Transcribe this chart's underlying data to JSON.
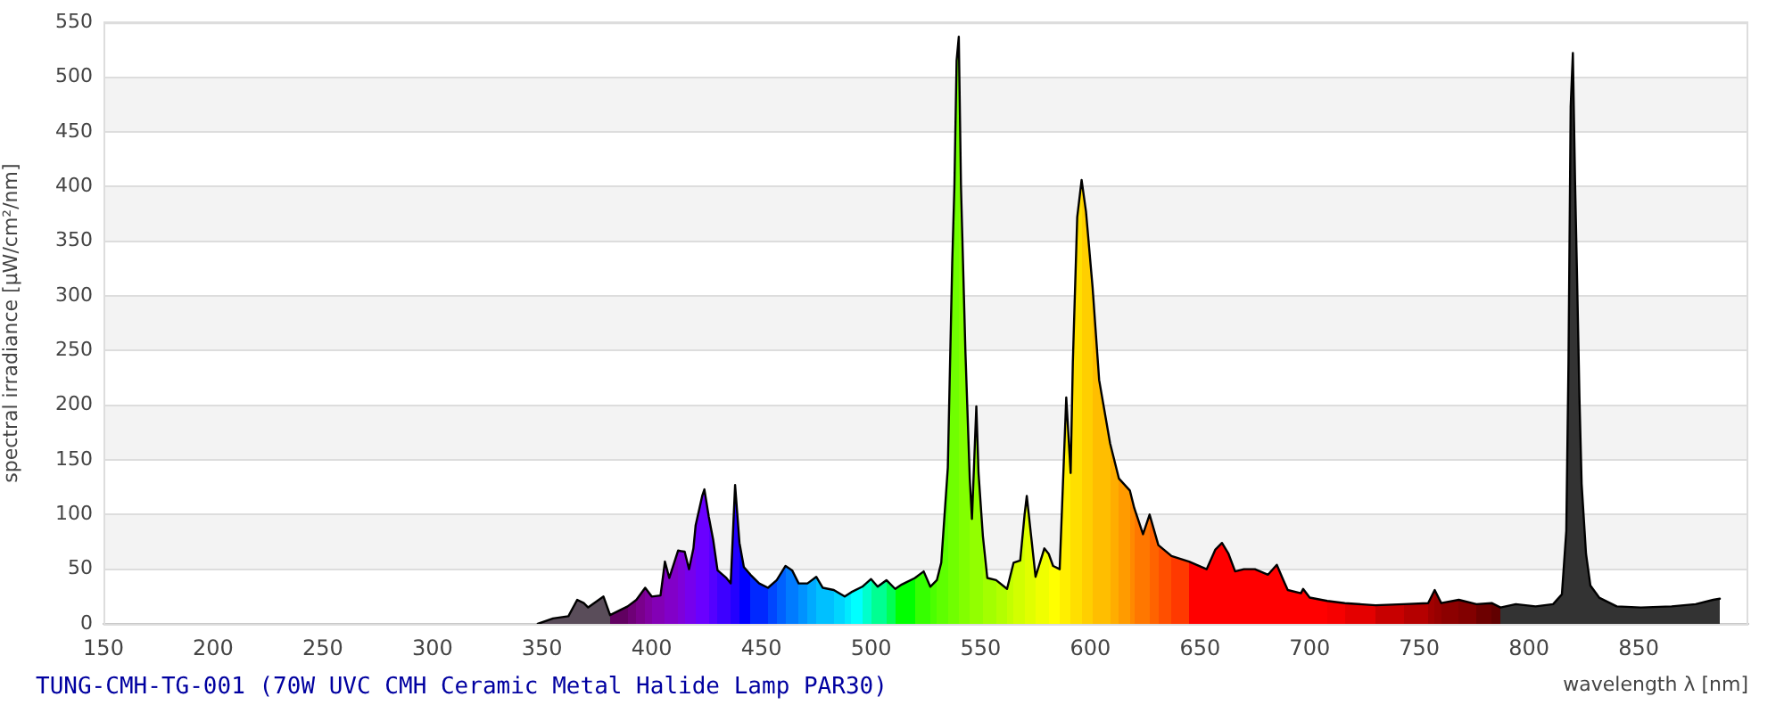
{
  "chart_data": {
    "type": "area",
    "title": "TUNG-CMH-TG-001 (70W UVC CMH Ceramic Metal Halide Lamp PAR30)",
    "xlabel": "wavelength λ [nm]",
    "ylabel": "spectral irradiance [µW/cm²/nm]",
    "x": [
      348,
      355,
      362,
      366,
      369,
      371,
      378,
      381,
      389,
      393,
      397,
      400,
      404,
      406,
      408,
      412,
      415,
      417,
      419,
      420,
      423,
      424,
      426,
      428,
      430,
      434,
      436,
      438,
      440,
      442,
      445,
      449,
      453,
      457,
      461,
      464,
      467,
      471,
      475,
      478,
      483,
      488,
      491,
      496,
      500,
      503,
      507,
      511,
      514,
      520,
      524,
      527,
      530,
      532,
      535,
      537,
      538,
      539,
      540,
      541,
      543,
      545,
      546,
      548,
      549,
      551,
      553,
      557,
      562,
      565,
      568,
      570,
      571,
      573,
      575,
      579,
      581,
      583,
      586,
      589,
      591,
      592,
      594,
      596,
      598,
      601,
      604,
      609,
      613,
      618,
      620,
      624,
      627,
      631,
      637,
      645,
      653,
      657,
      660,
      663,
      666,
      670,
      675,
      681,
      685,
      688,
      690,
      696,
      697,
      700,
      708,
      716,
      730,
      743,
      754,
      757,
      760,
      768,
      776,
      783,
      787,
      794,
      803,
      811,
      815,
      817,
      818,
      819,
      820,
      821,
      822,
      823,
      824,
      826,
      828,
      832,
      840,
      851,
      865,
      876,
      884,
      887
    ],
    "series": [
      {
        "color": "#000000",
        "values": [
          0,
          5,
          7,
          22,
          19,
          15,
          25,
          8,
          16,
          22,
          33,
          25,
          26,
          57,
          42,
          67,
          66,
          50,
          69,
          90,
          117,
          123,
          98,
          77,
          49,
          42,
          37,
          127,
          74,
          52,
          45,
          37,
          33,
          40,
          53,
          49,
          37,
          37,
          43,
          33,
          31,
          25,
          29,
          34,
          41,
          34,
          40,
          32,
          36,
          42,
          48,
          34,
          40,
          56,
          143,
          330,
          400,
          515,
          537,
          400,
          250,
          133,
          96,
          199,
          138,
          80,
          42,
          40,
          32,
          56,
          58,
          100,
          117,
          80,
          43,
          69,
          64,
          53,
          50,
          207,
          138,
          239,
          372,
          406,
          377,
          308,
          223,
          165,
          133,
          122,
          106,
          82,
          100,
          72,
          62,
          57,
          50,
          68,
          74,
          64,
          48,
          50,
          50,
          45,
          54,
          40,
          31,
          28,
          32,
          24,
          21,
          19,
          17,
          18,
          19,
          31,
          19,
          22,
          18,
          19,
          15,
          18,
          16,
          18,
          27,
          85,
          239,
          473,
          522,
          404,
          308,
          207,
          128,
          64,
          35,
          24,
          16,
          15,
          16,
          18,
          22,
          23
        ],
        "colors": [
          "#5a4d5a",
          "#5a4d5a",
          "#5a4d5a",
          "#5a4d5a",
          "#5a4d5a",
          "#5a4d5a",
          "#5a4d5a",
          "#610061",
          "#6f0077",
          "#7a008c",
          "#8000a1",
          "#8300b5",
          "#8300b5",
          "#8200c8",
          "#8200c8",
          "#7e00da",
          "#7600ed",
          "#7600ed",
          "#7600ed",
          "#6a00ff",
          "#6a00ff",
          "#6a00ff",
          "#5400ff",
          "#5400ff",
          "#3d00ff",
          "#3d00ff",
          "#2300ff",
          "#2300ff",
          "#0000ff",
          "#0000ff",
          "#0028ff",
          "#0028ff",
          "#0046ff",
          "#0061ff",
          "#007bff",
          "#007bff",
          "#0092ff",
          "#00aaff",
          "#00c0ff",
          "#00c0ff",
          "#00d5ff",
          "#00eaff",
          "#00ffff",
          "#00ffcb",
          "#00ff92",
          "#00ff92",
          "#00ff54",
          "#00ff00",
          "#00ff00",
          "#36ff00",
          "#36ff00",
          "#4bff00",
          "#5eff00",
          "#5eff00",
          "#70ff00",
          "#70ff00",
          "#70ff00",
          "#70ff00",
          "#82ff00",
          "#82ff00",
          "#82ff00",
          "#92ff00",
          "#92ff00",
          "#92ff00",
          "#92ff00",
          "#a3ff00",
          "#a3ff00",
          "#b3ff00",
          "#c3ff00",
          "#d2ff00",
          "#d2ff00",
          "#e1ff00",
          "#e1ff00",
          "#e1ff00",
          "#f0ff00",
          "#f0ff00",
          "#ffff00",
          "#ffff00",
          "#ffef00",
          "#ffef00",
          "#ffdf00",
          "#ffdf00",
          "#ffdf00",
          "#ffcf00",
          "#ffcf00",
          "#ffbe00",
          "#ffbe00",
          "#ffad00",
          "#ff9b00",
          "#ff8900",
          "#ff7700",
          "#ff7700",
          "#ff6300",
          "#ff4f00",
          "#ff3900",
          "#ff0000",
          "#ff0000",
          "#ff0000",
          "#ff0000",
          "#ff0000",
          "#ff0000",
          "#ff0000",
          "#ff0000",
          "#ff0000",
          "#ff0000",
          "#ff0000",
          "#ff0000",
          "#ff0000",
          "#ff0000",
          "#ff0000",
          "#f60000",
          "#e40000",
          "#c80000",
          "#b50000",
          "#a10000",
          "#970000",
          "#8c0000",
          "#820000",
          "#6d0000",
          "#610000",
          "#333333",
          "#333333",
          "#333333",
          "#333333",
          "#333333",
          "#333333",
          "#333333",
          "#333333",
          "#333333",
          "#333333",
          "#333333",
          "#333333",
          "#333333",
          "#333333",
          "#333333",
          "#333333",
          "#333333",
          "#333333",
          "#333333",
          "#333333",
          "#333333",
          "#333333"
        ]
      }
    ],
    "xlim": [
      150,
      900
    ],
    "xticks": [
      150,
      200,
      250,
      300,
      350,
      400,
      450,
      500,
      550,
      600,
      650,
      700,
      750,
      800,
      850
    ],
    "ylim": [
      0,
      550
    ],
    "yticks": [
      0,
      50,
      100,
      150,
      200,
      250,
      300,
      350,
      400,
      450,
      500,
      550
    ],
    "grid": "y",
    "marker": "none"
  }
}
